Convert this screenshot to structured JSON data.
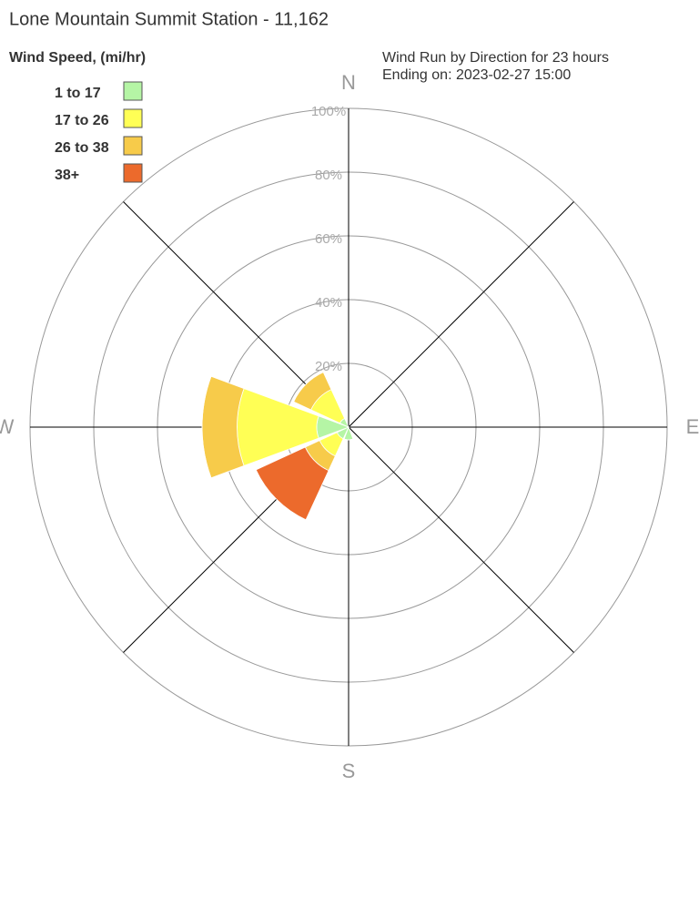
{
  "chart_data": {
    "type": "windrose",
    "title": "Lone Mountain Summit Station - 11,162",
    "legend_title": "Wind Speed, (mi/hr)",
    "subtitle": [
      "Wind Run by Direction for 23 hours",
      "Ending on: 2023-02-27 15:00"
    ],
    "categories": [
      "N",
      null,
      "E",
      null,
      "S",
      null,
      "W",
      null
    ],
    "series": [
      {
        "name": "1 to 17",
        "color": "#b5f5a5",
        "values": [
          0,
          0,
          0,
          0,
          4,
          4,
          10,
          3
        ]
      },
      {
        "name": "17 to 26",
        "color": "#ffff55",
        "values": [
          0,
          0,
          0,
          0,
          0,
          6,
          25,
          10
        ]
      },
      {
        "name": "26 to 38",
        "color": "#f7cb4a",
        "values": [
          0,
          0,
          0,
          0,
          0,
          5,
          11,
          6
        ]
      },
      {
        "name": "38+",
        "color": "#ec6a2c",
        "values": [
          0,
          0,
          0,
          0,
          0,
          17,
          0,
          0
        ]
      }
    ],
    "rlim": [
      0,
      100
    ],
    "rticks": [
      {
        "value": 20,
        "label": "20%"
      },
      {
        "value": 40,
        "label": "40%"
      },
      {
        "value": 60,
        "label": "60%"
      },
      {
        "value": 80,
        "label": "80%"
      },
      {
        "value": 100,
        "label": "100%"
      }
    ],
    "grid": true
  }
}
